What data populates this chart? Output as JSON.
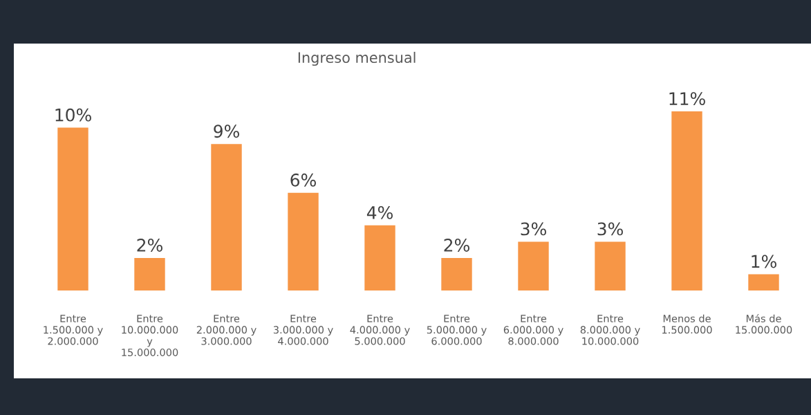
{
  "chart_data": {
    "type": "bar",
    "title": "Ingreso mensual",
    "categories": [
      "Entre\n1.500.000 y\n2.000.000",
      "Entre\n10.000.000\ny\n15.000.000",
      "Entre\n2.000.000 y\n3.000.000",
      "Entre\n3.000.000 y\n4.000.000",
      "Entre\n4.000.000 y\n5.000.000",
      "Entre\n5.000.000 y\n6.000.000",
      "Entre\n6.000.000 y\n8.000.000",
      "Entre\n8.000.000 y\n10.000.000",
      "Menos de\n1.500.000",
      "Más de\n15.000.000"
    ],
    "values": [
      10,
      2,
      9,
      6,
      4,
      2,
      3,
      3,
      11,
      1
    ],
    "value_labels": [
      "10%",
      "2%",
      "9%",
      "6%",
      "4%",
      "2%",
      "3%",
      "3%",
      "11%",
      "1%"
    ],
    "color": "#f79646",
    "grid": false
  }
}
